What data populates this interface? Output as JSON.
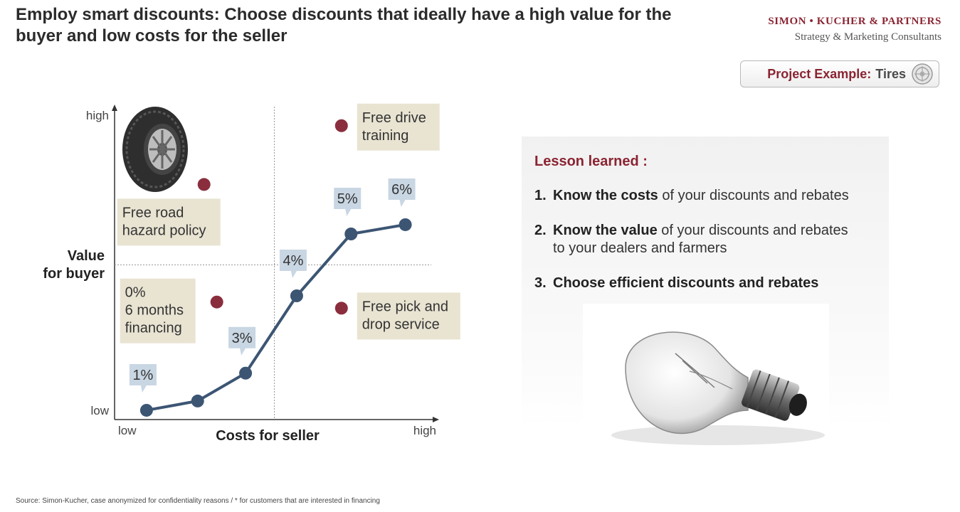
{
  "header": {
    "title": "Employ smart discounts: Choose discounts that ideally have a high value for the buyer and low costs for the seller",
    "brand_name": "SIMON • KUCHER & PARTNERS",
    "brand_tagline": "Strategy & Marketing Consultants"
  },
  "project_badge": {
    "label": "Project Example:",
    "value": "Tires",
    "icon": "tire-target-icon"
  },
  "chart_data": {
    "type": "line",
    "xlabel": "Costs for seller",
    "ylabel_line1": "Value",
    "ylabel_line2": "for buyer",
    "x_tick_low": "low",
    "x_tick_high": "high",
    "y_tick_low": "low",
    "y_tick_high": "high",
    "xlim": [
      0,
      10
    ],
    "ylim": [
      0,
      10
    ],
    "quadrant_divider": {
      "x": 5,
      "y": 5
    },
    "grid": false,
    "colors": {
      "line": "#3c5573",
      "dot": "#8a2e3d",
      "callout_blue": "#c9d6e3",
      "callout_beige": "#e9e4d2"
    },
    "series": [
      {
        "points": [
          {
            "x": 1.0,
            "y": 0.3,
            "label": "1%"
          },
          {
            "x": 2.6,
            "y": 0.6,
            "label": ""
          },
          {
            "x": 4.1,
            "y": 1.5,
            "label": "3%"
          },
          {
            "x": 5.7,
            "y": 4.0,
            "label": "4%"
          },
          {
            "x": 7.4,
            "y": 6.0,
            "label": "5%"
          },
          {
            "x": 9.1,
            "y": 6.3,
            "label": "6%"
          }
        ]
      }
    ],
    "options": [
      {
        "x": 2.8,
        "y": 7.6,
        "label_line1": "Free road",
        "label_line2": "hazard policy",
        "label_line3": ""
      },
      {
        "x": 3.2,
        "y": 3.8,
        "label_line1": "0%",
        "label_line2": "6 months",
        "label_line3": "financing"
      },
      {
        "x": 7.1,
        "y": 9.5,
        "label_line1": "Free drive",
        "label_line2": "training",
        "label_line3": ""
      },
      {
        "x": 7.1,
        "y": 3.6,
        "label_line1": "Free pick and",
        "label_line2": "drop service",
        "label_line3": ""
      }
    ]
  },
  "lesson": {
    "title": "Lesson learned :",
    "items": [
      {
        "num": "1.",
        "bold": "Know the costs",
        "rest": " of your discounts and rebates",
        "line2": ""
      },
      {
        "num": "2.",
        "bold": "Know the value",
        "rest": " of your discounts and rebates",
        "line2": "to your dealers and farmers"
      },
      {
        "num": "3.",
        "bold": "Choose efficient discounts and rebates",
        "rest": "",
        "line2": ""
      }
    ],
    "image_icon": "light-bulb-icon"
  },
  "footer": {
    "source": "Source: Simon-Kucher, case anonymized for confidentiality reasons / * for customers that are interested in financing"
  }
}
